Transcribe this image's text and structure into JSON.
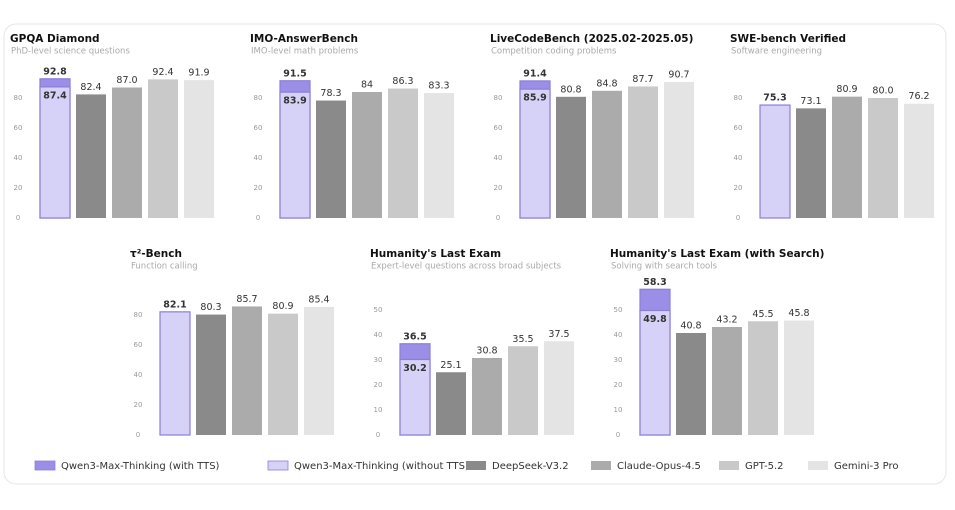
{
  "legend": {
    "series": [
      {
        "name": "Qwen3-Max-Thinking (with TTS)",
        "color": "#9b8ee6"
      },
      {
        "name": "Qwen3-Max-Thinking (without TTS)",
        "color": "#d6d1f6"
      },
      {
        "name": "DeepSeek-V3.2",
        "color": "#8a8a8a"
      },
      {
        "name": "Claude-Opus-4.5",
        "color": "#ababab"
      },
      {
        "name": "GPT-5.2",
        "color": "#c9c9c9"
      },
      {
        "name": "Gemini-3 Pro",
        "color": "#e4e4e4"
      }
    ]
  },
  "chart_data": [
    {
      "type": "bar",
      "title": "GPQA Diamond",
      "subtitle": "PhD-level science questions",
      "values": [
        92.8,
        87.4,
        82.4,
        87.0,
        92.4,
        91.9
      ],
      "value_labels": [
        "92.8",
        "87.4",
        "82.4",
        "87.0",
        "92.4",
        "91.9"
      ],
      "ylim": [
        0,
        100
      ],
      "yticks": [
        0,
        20,
        40,
        60,
        80
      ]
    },
    {
      "type": "bar",
      "title": "IMO-AnswerBench",
      "subtitle": "IMO-level math problems",
      "values": [
        91.5,
        83.9,
        78.3,
        84.0,
        86.3,
        83.3
      ],
      "ylim": [
        0,
        100
      ],
      "yticks": [
        0,
        20,
        40,
        60,
        80
      ]
    },
    {
      "type": "bar",
      "title": "LiveCodeBench (2025.02-2025.05)",
      "subtitle": "Competition coding problems",
      "values": [
        91.4,
        85.9,
        80.8,
        84.8,
        87.7,
        90.7
      ],
      "ylim": [
        0,
        100
      ],
      "yticks": [
        0,
        20,
        40,
        60,
        80
      ]
    },
    {
      "type": "bar",
      "title": "SWE-bench Verified",
      "subtitle": "Software engineering",
      "values": [
        null,
        75.3,
        73.1,
        80.9,
        80.0,
        76.2
      ],
      "value_labels": [
        null,
        "75.3",
        "73.1",
        "80.9",
        "80.0",
        "76.2"
      ],
      "ylim": [
        0,
        100
      ],
      "yticks": [
        0,
        20,
        40,
        60,
        80
      ]
    },
    {
      "type": "bar",
      "title": "τ²-Bench",
      "subtitle": "Function calling",
      "values": [
        null,
        82.1,
        80.3,
        85.7,
        80.9,
        85.4
      ],
      "ylim": [
        0,
        100
      ],
      "yticks": [
        0,
        20,
        40,
        60,
        80
      ]
    },
    {
      "type": "bar",
      "title": "Humanity's Last Exam",
      "subtitle": "Expert-level questions across broad subjects",
      "values": [
        36.5,
        30.2,
        25.1,
        30.8,
        35.5,
        37.5
      ],
      "ylim": [
        0,
        60
      ],
      "yticks": [
        0,
        10,
        20,
        30,
        40,
        50
      ]
    },
    {
      "type": "bar",
      "title": "Humanity's Last Exam (with Search)",
      "subtitle": "Solving with search tools",
      "values": [
        58.3,
        49.8,
        40.8,
        43.2,
        45.5,
        45.8
      ],
      "ylim": [
        0,
        60
      ],
      "yticks": [
        0,
        10,
        20,
        30,
        40,
        50
      ]
    }
  ]
}
